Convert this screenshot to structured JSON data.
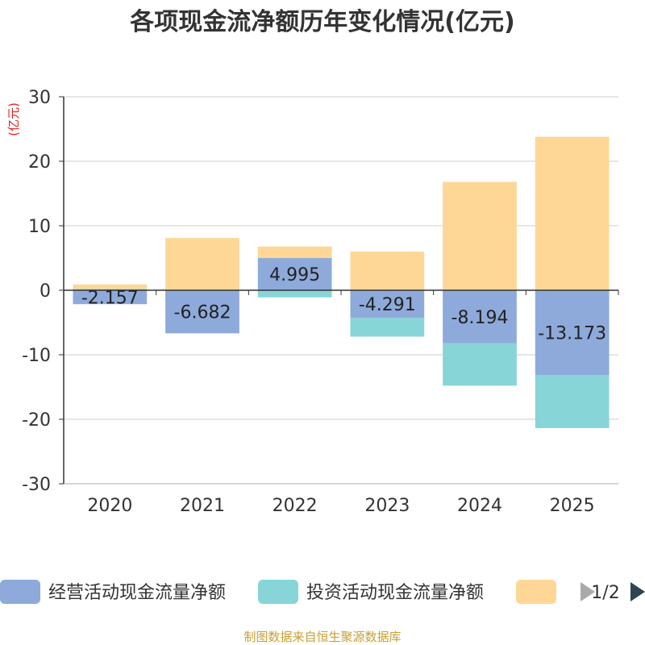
{
  "chart_data": {
    "type": "bar",
    "stacked": true,
    "title": "各项现金流净额历年变化情况(亿元)",
    "ylabel": "(亿元)",
    "ylim": [
      -30,
      30
    ],
    "yticks": [
      30,
      20,
      10,
      0,
      -10,
      -20,
      -30
    ],
    "categories": [
      "2020",
      "2021",
      "2022",
      "2023",
      "2024",
      "2025"
    ],
    "series": [
      {
        "name": "经营活动现金流量净额",
        "color": "#8eaadb",
        "values": [
          -2.157,
          -6.682,
          4.995,
          -4.291,
          -8.194,
          -13.173
        ]
      },
      {
        "name": "投资活动现金流量净额",
        "color": "#88d5d8",
        "values": [
          0.2,
          0.0,
          -1.1,
          -2.9,
          -6.6,
          -8.2
        ]
      },
      {
        "name": "",
        "color": "#fed797",
        "values": [
          0.7,
          8.1,
          1.8,
          6.0,
          16.8,
          23.8
        ]
      }
    ],
    "data_labels": [
      "-2.157",
      "-6.682",
      "4.995",
      "-4.291",
      "-8.194",
      "-13.173"
    ],
    "legend": {
      "position": "bottom",
      "page": "1/2"
    }
  },
  "footer": {
    "source": "制图数据来自恒生聚源数据库"
  }
}
